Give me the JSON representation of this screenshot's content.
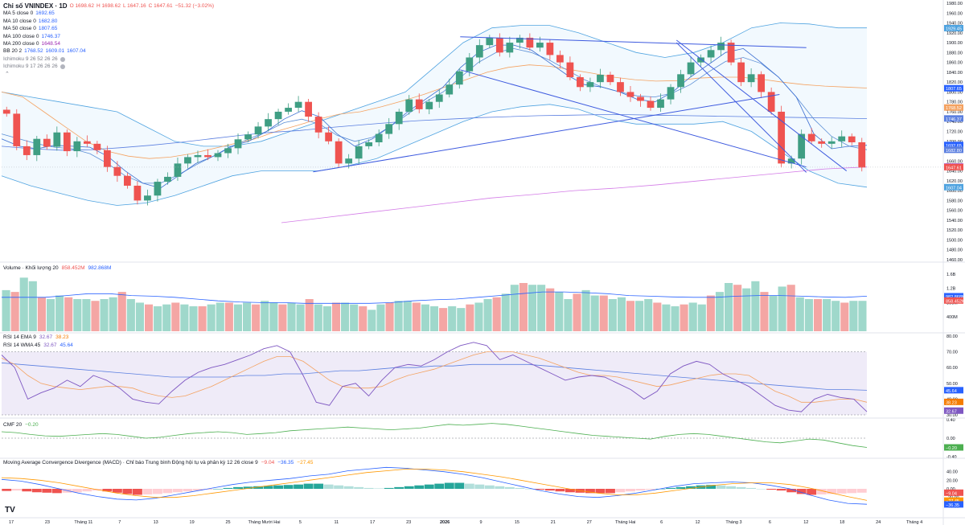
{
  "header": {
    "title": "Chỉ số VNINDEX · 1D",
    "ohlc": [
      {
        "label": "O",
        "value": "1698.62"
      },
      {
        "label": "H",
        "value": "1698.62"
      },
      {
        "label": "L",
        "value": "1647.16"
      },
      {
        "label": "C",
        "value": "1647.61"
      },
      {
        "label": "",
        "value": "−51.32 (−3.02%)"
      }
    ]
  },
  "indicators": [
    {
      "label": "MA 5 close 0",
      "values": [
        "1692.65"
      ],
      "color": "#2962ff"
    },
    {
      "label": "MA 10 close 0",
      "values": [
        "1682.80"
      ],
      "color": "#2962ff"
    },
    {
      "label": "MA 50 close 0",
      "values": [
        "1807.65"
      ],
      "color": "#2962ff"
    },
    {
      "label": "MA 100 close 0",
      "values": [
        "1746.37"
      ],
      "color": "#2962ff"
    },
    {
      "label": "MA 200 close 0",
      "values": [
        "1648.54"
      ],
      "color": "#9c27b0"
    },
    {
      "label": "BB 20 2",
      "values": [
        "1768.52",
        "1609.01",
        "1607.04"
      ],
      "color": "#2962ff"
    },
    {
      "label": "Ichimoku 9 26 52 26 26",
      "values": [],
      "color": "#b2b5be"
    },
    {
      "label": "Ichimoku 9 17 26 26 26",
      "values": [],
      "color": "#b2b5be"
    }
  ],
  "colors": {
    "up": "#26a69a",
    "up_body": "#3f9e83",
    "down": "#ef5350",
    "ma_blue": "#5b7fe0",
    "ma_orange": "#f4a261",
    "ma200": "#d37be7",
    "bb": "#4fa3e0",
    "trend": "#3d5adf",
    "rsi": "#7e57c2",
    "rsi_ma": "#f4a261",
    "rsi_long": "#5b7fe0",
    "cmf": "#4caf50",
    "macd": "#2962ff",
    "signal": "#ff9800"
  },
  "chart_data": [
    {
      "type": "candlestick",
      "title": "Chỉ số VNINDEX · 1D",
      "ylim": [
        1460,
        1980
      ],
      "yticks": [
        1460,
        1480,
        1500,
        1520,
        1540,
        1560,
        1580,
        1600,
        1620,
        1640,
        1660,
        1680,
        1700,
        1720,
        1740,
        1760,
        1780,
        1800,
        1820,
        1840,
        1860,
        1880,
        1900,
        1920,
        1940,
        1960,
        1980
      ],
      "price_labels": [
        {
          "value": 1929.45,
          "text": "1929.45",
          "color": "#4fa3e0"
        },
        {
          "value": 1807.65,
          "text": "1807.65",
          "color": "#2962ff"
        },
        {
          "value": 1768.52,
          "text": "1768.52",
          "color": "#f4a261"
        },
        {
          "value": 1746.37,
          "text": "1746.37",
          "color": "#5b7fe0"
        },
        {
          "value": 1692.65,
          "text": "1692.65",
          "color": "#2962ff"
        },
        {
          "value": 1682.8,
          "text": "1682.80",
          "color": "#5b7fe0"
        },
        {
          "value": 1648.54,
          "text": "1648.54",
          "color": "#9c27b0"
        },
        {
          "value": 1647.61,
          "text": "1647.61",
          "color": "#ef5350"
        },
        {
          "value": 1607.04,
          "text": "1607.04",
          "color": "#4fa3e0"
        }
      ],
      "x_labels": [
        "17",
        "23",
        "Tháng 11",
        "7",
        "13",
        "19",
        "25",
        "Tháng Mười Hai",
        "5",
        "11",
        "17",
        "23",
        "2026",
        "9",
        "15",
        "21",
        "27",
        "Tháng Hai",
        "6",
        "12",
        "Tháng 3",
        "6",
        "12",
        "18",
        "24",
        "Tháng 4"
      ],
      "closes": [
        1756,
        1690,
        1672,
        1705,
        1689,
        1718,
        1680,
        1700,
        1695,
        1682,
        1648,
        1630,
        1610,
        1580,
        1590,
        1618,
        1628,
        1655,
        1668,
        1672,
        1668,
        1676,
        1686,
        1704,
        1714,
        1730,
        1745,
        1760,
        1768,
        1780,
        1750,
        1718,
        1700,
        1655,
        1665,
        1690,
        1698,
        1715,
        1735,
        1760,
        1785,
        1765,
        1780,
        1795,
        1815,
        1842,
        1870,
        1895,
        1910,
        1880,
        1900,
        1910,
        1890,
        1900,
        1875,
        1860,
        1830,
        1810,
        1820,
        1835,
        1820,
        1800,
        1790,
        1782,
        1768,
        1785,
        1810,
        1836,
        1860,
        1870,
        1885,
        1900,
        1860,
        1820,
        1836,
        1800,
        1760,
        1655,
        1665,
        1715,
        1700,
        1695,
        1700,
        1710,
        1698,
        1647
      ],
      "ma_curves": {
        "ma5": [
          1705,
          1690,
          1685,
          1692,
          1690,
          1688,
          1670,
          1640,
          1615,
          1605,
          1630,
          1655,
          1670,
          1690,
          1700,
          1720,
          1745,
          1762,
          1750,
          1715,
          1690,
          1705,
          1730,
          1760,
          1785,
          1810,
          1850,
          1880,
          1895,
          1895,
          1885,
          1860,
          1835,
          1815,
          1810,
          1800,
          1785,
          1780,
          1800,
          1830,
          1855,
          1880,
          1888,
          1860,
          1830,
          1790,
          1715,
          1685,
          1690,
          1692
        ],
        "ma10": [
          1715,
          1705,
          1695,
          1688,
          1685,
          1675,
          1655,
          1630,
          1615,
          1615,
          1632,
          1652,
          1670,
          1688,
          1705,
          1720,
          1738,
          1745,
          1735,
          1712,
          1700,
          1708,
          1730,
          1755,
          1780,
          1800,
          1830,
          1860,
          1880,
          1888,
          1880,
          1865,
          1845,
          1825,
          1810,
          1800,
          1792,
          1790,
          1798,
          1815,
          1840,
          1862,
          1870,
          1858,
          1830,
          1790,
          1745,
          1710,
          1690,
          1683
        ],
        "ma50": [
          1800,
          1790,
          1760,
          1730,
          1700,
          1680,
          1670,
          1665,
          1668,
          1675,
          1685,
          1695,
          1705,
          1720,
          1732,
          1745,
          1755,
          1760,
          1770,
          1782,
          1795,
          1810,
          1825,
          1840,
          1850,
          1855,
          1852,
          1845,
          1838,
          1830,
          1825,
          1822,
          1823,
          1828,
          1830,
          1830,
          1826,
          1820,
          1815,
          1812,
          1810,
          1808
        ],
        "ma100": [
          1690,
          1685,
          1682,
          1683,
          1687,
          1692,
          1698,
          1705,
          1712,
          1718,
          1722,
          1728,
          1733,
          1738,
          1742,
          1745,
          1748,
          1750,
          1752,
          1753,
          1754,
          1754,
          1753,
          1752,
          1751,
          1750,
          1749,
          1748,
          1747,
          1746
        ],
        "ma200": [
          1535,
          1545,
          1555,
          1565,
          1575,
          1585,
          1592,
          1600,
          1605,
          1612,
          1620,
          1628,
          1636,
          1644,
          1648
        ],
        "bb_upper": [
          1800,
          1790,
          1780,
          1770,
          1760,
          1730,
          1700,
          1690,
          1690,
          1700,
          1720,
          1740,
          1760,
          1780,
          1800,
          1850,
          1900,
          1930,
          1935,
          1935,
          1920,
          1900,
          1880,
          1870,
          1880,
          1900,
          1930,
          1940,
          1938,
          1930,
          1930
        ],
        "bb_lower": [
          1630,
          1610,
          1595,
          1580,
          1570,
          1575,
          1590,
          1610,
          1630,
          1640,
          1640,
          1640,
          1650,
          1665,
          1690,
          1715,
          1740,
          1760,
          1770,
          1775,
          1765,
          1745,
          1735,
          1735,
          1735,
          1740,
          1720,
          1680,
          1640,
          1615,
          1607
        ],
        "trend_lines": [
          [
            [
              0.53,
              1912
            ],
            [
              0.9,
              1890
            ]
          ],
          [
            [
              0.53,
              1845
            ],
            [
              0.9,
              1648
            ]
          ],
          [
            [
              0.36,
              1638
            ],
            [
              0.87,
              1795
            ]
          ],
          [
            [
              0.78,
              1900
            ],
            [
              0.9,
              1637
            ]
          ],
          [
            [
              0.78,
              1905
            ],
            [
              0.945,
              1640
            ]
          ]
        ]
      }
    },
    {
      "type": "bar",
      "title": "Volume · Khối lượng 20",
      "legend_values": [
        "858.452M",
        "982.868M"
      ],
      "yticks_labels": [
        "1.6B",
        "1.2B",
        "800M",
        "400M"
      ],
      "ylim": [
        0,
        1.8
      ],
      "volumes": [
        1.15,
        1.1,
        1.5,
        1.4,
        0.95,
        0.9,
        1.0,
        0.95,
        0.9,
        0.9,
        0.85,
        0.9,
        0.95,
        1.1,
        0.9,
        0.8,
        0.75,
        0.7,
        0.75,
        0.8,
        0.75,
        0.7,
        0.7,
        0.75,
        0.8,
        0.8,
        0.75,
        0.8,
        0.75,
        0.85,
        0.8,
        0.75,
        0.8,
        0.75,
        0.9,
        0.75,
        0.7,
        0.8,
        0.8,
        0.75,
        0.7,
        0.6,
        0.75,
        0.8,
        0.85,
        0.85,
        0.8,
        0.75,
        0.7,
        0.65,
        0.7,
        0.65,
        0.75,
        0.8,
        0.9,
        0.95,
        1.05,
        1.3,
        1.35,
        1.3,
        1.3,
        1.2,
        1.1,
        0.9,
        1.05,
        1.15,
        1.0,
        1.0,
        0.9,
        0.95,
        0.85,
        0.85,
        0.9,
        0.8,
        0.75,
        0.7,
        0.75,
        0.8,
        0.75,
        1.0,
        1.1,
        1.35,
        1.3,
        1.2,
        1.4,
        1.1,
        1.0,
        1.25,
        1.3,
        0.95,
        0.9,
        0.9,
        0.9,
        0.85,
        0.8,
        0.85,
        0.85
      ],
      "vol_ma": [
        0.95,
        0.95,
        0.95,
        1.0,
        1.05,
        1.05,
        1.0,
        0.98,
        0.95,
        0.9,
        0.85,
        0.82,
        0.8,
        0.8,
        0.78,
        0.78,
        0.78,
        0.78,
        0.8,
        0.85,
        0.88,
        0.9,
        0.95,
        1.0,
        1.05,
        1.1,
        1.1,
        1.08,
        1.05,
        1.0,
        0.98,
        0.96,
        0.95,
        0.95,
        0.98,
        1.0,
        1.0,
        0.98,
        0.96,
        0.95,
        0.98
      ]
    },
    {
      "type": "line",
      "title": "RSI 14 EMA 9",
      "subtitles": [
        {
          "text": "RSI 14 EMA 9",
          "values": [
            "32.67",
            "38.23"
          ]
        },
        {
          "text": "RSI 14 WMA 45",
          "values": [
            "32.67",
            "45.64"
          ]
        }
      ],
      "ylim": [
        30,
        80
      ],
      "yticks": [
        30,
        40,
        50,
        60,
        70,
        80
      ],
      "band": [
        30,
        70
      ],
      "labels": [
        {
          "value": 45.64,
          "text": "45.64",
          "color": "#2962ff"
        },
        {
          "value": 38.23,
          "text": "38.23",
          "color": "#f57c00"
        },
        {
          "value": 32.67,
          "text": "32.67",
          "color": "#7e57c2"
        }
      ],
      "rsi": [
        68,
        60,
        40,
        44,
        47,
        52,
        48,
        55,
        52,
        47,
        40,
        38,
        37,
        45,
        52,
        57,
        60,
        62,
        65,
        68,
        72,
        74,
        70,
        55,
        38,
        36,
        48,
        50,
        42,
        52,
        60,
        62,
        61,
        65,
        70,
        74,
        76,
        74,
        65,
        68,
        64,
        60,
        56,
        52,
        54,
        55,
        54,
        50,
        46,
        40,
        45,
        56,
        61,
        64,
        62,
        56,
        52,
        48,
        42,
        36,
        33,
        32,
        40,
        43,
        41,
        40,
        32
      ],
      "rsi_ma": [
        66,
        62,
        55,
        50,
        48,
        47,
        46,
        47,
        48,
        48,
        47,
        44,
        42,
        41,
        42,
        45,
        48,
        52,
        56,
        60,
        64,
        67,
        67,
        64,
        58,
        52,
        48,
        47,
        47,
        48,
        52,
        55,
        57,
        59,
        62,
        65,
        68,
        70,
        70,
        70,
        68,
        66,
        63,
        60,
        57,
        55,
        55,
        54,
        52,
        50,
        48,
        49,
        51,
        53,
        55,
        56,
        56,
        55,
        50,
        45,
        42,
        38,
        38,
        39,
        40,
        40,
        38
      ],
      "rsi_long": [
        63,
        62,
        61,
        60,
        59,
        58,
        57,
        56,
        55,
        54,
        54,
        54,
        54,
        55,
        55,
        56,
        56,
        57,
        58,
        58,
        59,
        60,
        60,
        61,
        61,
        62,
        62,
        62,
        62,
        61,
        60,
        59,
        58,
        57,
        56,
        55,
        54,
        53,
        52,
        51,
        50,
        49,
        48,
        47,
        46,
        46,
        45.6
      ]
    },
    {
      "type": "line",
      "title": "CMF 20",
      "subtitles": [
        {
          "text": "CMF 20",
          "values": [
            "−0.20"
          ]
        }
      ],
      "ylim": [
        -0.4,
        0.4
      ],
      "yticks": [
        -0.4,
        0,
        0.4
      ],
      "labels": [
        {
          "value": -0.2,
          "text": "−0.20",
          "color": "#4caf50"
        }
      ],
      "cmf": [
        0.14,
        0.12,
        0.08,
        0.05,
        0.04,
        0.06,
        0.08,
        0.1,
        0.08,
        0.04,
        0.0,
        0.02,
        0.06,
        0.1,
        0.12,
        0.14,
        0.12,
        0.08,
        0.1,
        0.12,
        0.16,
        0.18,
        0.2,
        0.22,
        0.24,
        0.22,
        0.2,
        0.18,
        0.2,
        0.22,
        0.26,
        0.3,
        0.28,
        0.3,
        0.32,
        0.3,
        0.26,
        0.22,
        0.18,
        0.14,
        0.1,
        0.06,
        0.04,
        0.02,
        0.0,
        -0.02,
        0.04,
        0.08,
        0.1,
        0.08,
        0.04,
        0.0,
        -0.04,
        -0.08,
        -0.1,
        -0.06,
        -0.02,
        -0.04,
        -0.1,
        -0.16,
        -0.2
      ]
    },
    {
      "type": "bar",
      "title": "Moving Average Convergence Divergence (MACD) · Chỉ báo Trung bình Động hội tụ và phân kỳ 12 26 close 9",
      "legend_values": [
        "−9.04",
        "−36.35",
        "−27.45"
      ],
      "ylim": [
        -60,
        60
      ],
      "yticks": [
        -40,
        -20,
        0,
        20,
        40
      ],
      "labels": [
        {
          "value": -9.04,
          "text": "−9.04",
          "color": "#ef5350"
        },
        {
          "value": -27.45,
          "text": "−27.45",
          "color": "#ff9800"
        },
        {
          "value": -36.35,
          "text": "−36.35",
          "color": "#2962ff"
        }
      ],
      "hist": [
        -5,
        -4,
        -6,
        -8,
        -9,
        -10,
        -9,
        -8,
        -6,
        -4,
        -6,
        -9,
        -12,
        -14,
        -13,
        -12,
        -10,
        -8,
        -6,
        -4,
        -2,
        0,
        2,
        4,
        5,
        6,
        7,
        8,
        9,
        10,
        12,
        12,
        10,
        8,
        6,
        4,
        2,
        1,
        2,
        4,
        6,
        8,
        10,
        12,
        14,
        14,
        12,
        10,
        8,
        6,
        4,
        2,
        0,
        -2,
        -4,
        -6,
        -8,
        -9,
        -10,
        -10,
        -10,
        -8,
        -6,
        -4,
        -2,
        0,
        2,
        4,
        6,
        8,
        9,
        8,
        6,
        4,
        2,
        0,
        -2,
        -4,
        -8,
        -12,
        -14,
        -13,
        -12,
        -11,
        -10,
        -9
      ],
      "macd": [
        22,
        18,
        10,
        0,
        -10,
        -18,
        -24,
        -26,
        -22,
        -14,
        -6,
        2,
        10,
        16,
        20,
        24,
        30,
        34,
        42,
        46,
        50,
        48,
        44,
        40,
        34,
        26,
        16,
        6,
        -4,
        -12,
        -18,
        -20,
        -16,
        -10,
        -2,
        6,
        12,
        14,
        16,
        14,
        8,
        0,
        -14,
        -26,
        -34,
        -36
      ],
      "signal": [
        26,
        24,
        20,
        14,
        6,
        -2,
        -10,
        -16,
        -20,
        -20,
        -16,
        -10,
        -4,
        2,
        8,
        14,
        20,
        26,
        32,
        38,
        42,
        46,
        46,
        44,
        40,
        34,
        28,
        20,
        12,
        4,
        -4,
        -10,
        -14,
        -14,
        -10,
        -4,
        2,
        8,
        12,
        14,
        14,
        10,
        2,
        -8,
        -18,
        -27
      ]
    }
  ]
}
